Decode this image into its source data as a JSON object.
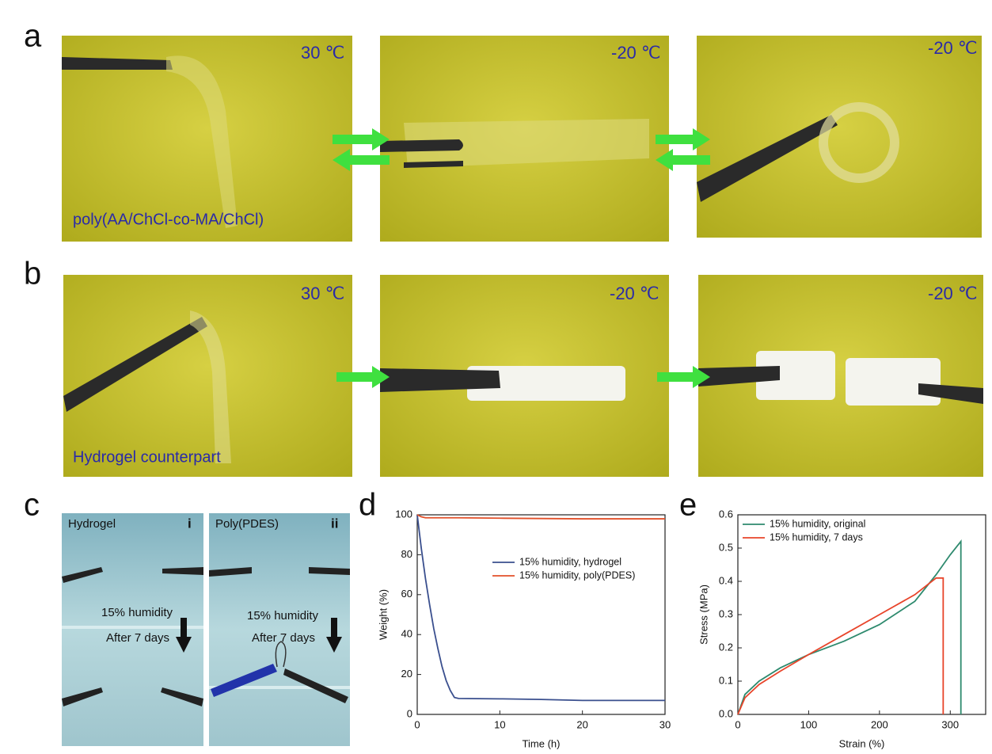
{
  "panels": {
    "a": {
      "label": "a",
      "photos": [
        {
          "temp": "30 ℃",
          "caption": "poly(AA/ChCl-co-MA/ChCl)"
        },
        {
          "temp": "-20 ℃"
        },
        {
          "temp": "-20 ℃"
        }
      ]
    },
    "b": {
      "label": "b",
      "photos": [
        {
          "temp": "30 ℃",
          "caption": "Hydrogel counterpart"
        },
        {
          "temp": "-20 ℃"
        },
        {
          "temp": "-20 ℃"
        }
      ]
    },
    "c": {
      "label": "c",
      "photos": [
        {
          "title": "Hydrogel",
          "index": "i",
          "condition": "15% humidity",
          "time": "After 7 days"
        },
        {
          "title": "Poly(PDES)",
          "index": "ii",
          "condition": "15% humidity",
          "time": "After 7 days"
        }
      ]
    },
    "d": {
      "label": "d"
    },
    "e": {
      "label": "e"
    }
  },
  "chart_data": [
    {
      "type": "line",
      "xlabel": "Time (h)",
      "ylabel": "Weight (%)",
      "xlim": [
        0,
        30
      ],
      "ylim": [
        0,
        100
      ],
      "xticks": [
        0,
        10,
        20,
        30
      ],
      "yticks": [
        0,
        20,
        40,
        60,
        80,
        100
      ],
      "legend": "right",
      "series": [
        {
          "name": "15% humidity, hydrogel",
          "color": "#3a4f8e",
          "x": [
            0,
            0.5,
            1,
            1.5,
            2,
            2.5,
            3,
            3.5,
            4,
            4.5,
            5,
            10,
            15,
            20,
            25,
            30
          ],
          "values": [
            100,
            83,
            68,
            55,
            43,
            33,
            24,
            17,
            12,
            8.5,
            8,
            7.8,
            7.5,
            7,
            7,
            7
          ]
        },
        {
          "name": "15% humidity, poly(PDES)",
          "color": "#e2502a",
          "x": [
            0,
            0.5,
            1,
            5,
            10,
            20,
            30
          ],
          "values": [
            100,
            99,
            98.5,
            98.5,
            98.3,
            98,
            98
          ]
        }
      ]
    },
    {
      "type": "line",
      "xlabel": "Strain (%)",
      "ylabel": "Stress (MPa)",
      "xlim": [
        0,
        350
      ],
      "ylim": [
        0,
        0.6
      ],
      "xticks": [
        0,
        100,
        200,
        300
      ],
      "yticks": [
        {
          "value": 0,
          "label": "0.0"
        },
        0.1,
        0.2,
        0.3,
        0.4,
        0.5,
        0.6
      ],
      "legend": "upper left",
      "series": [
        {
          "name": "15% humidity, original",
          "color": "#2e8a6e",
          "x": [
            0,
            10,
            30,
            60,
            100,
            150,
            200,
            250,
            280,
            300,
            315,
            315
          ],
          "values": [
            0,
            0.06,
            0.1,
            0.14,
            0.18,
            0.22,
            0.27,
            0.34,
            0.42,
            0.48,
            0.52,
            0
          ]
        },
        {
          "name": "15% humidity, 7 days",
          "color": "#e8442a",
          "x": [
            0,
            10,
            30,
            60,
            100,
            150,
            200,
            250,
            280,
            290,
            290
          ],
          "values": [
            0,
            0.05,
            0.09,
            0.13,
            0.18,
            0.24,
            0.3,
            0.36,
            0.41,
            0.41,
            0
          ]
        }
      ]
    }
  ]
}
